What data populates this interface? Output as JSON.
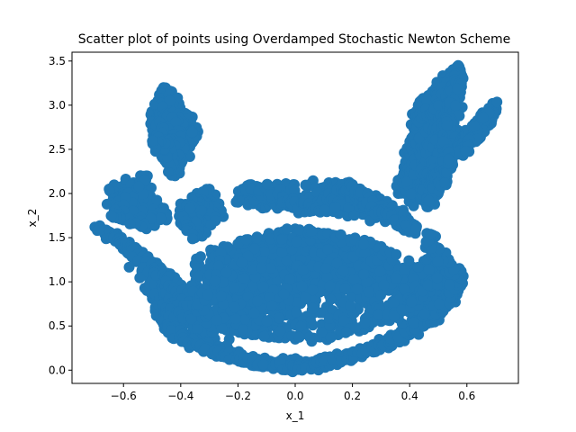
{
  "chart_data": {
    "type": "scatter",
    "title": "Scatter plot of points using Overdamped Stochastic Newton Scheme",
    "xlabel": "x_1",
    "ylabel": "x_2",
    "xlim": [
      -0.78,
      0.78
    ],
    "ylim": [
      -0.15,
      3.6
    ],
    "xticks": [
      -0.6,
      -0.4,
      -0.2,
      0.0,
      0.2,
      0.4,
      0.6
    ],
    "xtick_labels": [
      "−0.6",
      "−0.4",
      "−0.2",
      "0.0",
      "0.2",
      "0.4",
      "0.6"
    ],
    "yticks": [
      0.0,
      0.5,
      1.0,
      1.5,
      2.0,
      2.5,
      3.0,
      3.5
    ],
    "ytick_labels": [
      "0.0",
      "0.5",
      "1.0",
      "1.5",
      "2.0",
      "2.5",
      "3.0",
      "3.5"
    ],
    "grid": false,
    "marker_color": "#1f77b4",
    "series": [
      {
        "values_description_points": [
          [
            -0.7,
            1.62
          ],
          [
            -0.66,
            1.55
          ],
          [
            -0.62,
            1.5
          ],
          [
            -0.58,
            1.4
          ],
          [
            -0.55,
            1.3
          ],
          [
            -0.5,
            1.2
          ],
          [
            -0.46,
            1.1
          ],
          [
            -0.42,
            1.0
          ],
          [
            -0.4,
            0.85
          ],
          [
            -0.42,
            0.7
          ],
          [
            -0.46,
            0.52
          ],
          [
            -0.44,
            0.45
          ],
          [
            -0.4,
            0.35
          ],
          [
            -0.35,
            0.28
          ],
          [
            -0.3,
            0.22
          ],
          [
            -0.25,
            0.18
          ],
          [
            -0.2,
            0.14
          ],
          [
            -0.15,
            0.1
          ],
          [
            -0.1,
            0.06
          ],
          [
            -0.05,
            0.03
          ],
          [
            0.0,
            0.02
          ],
          [
            0.05,
            0.03
          ],
          [
            0.1,
            0.06
          ],
          [
            0.15,
            0.1
          ],
          [
            0.2,
            0.16
          ],
          [
            0.25,
            0.22
          ],
          [
            0.3,
            0.28
          ],
          [
            0.35,
            0.32
          ],
          [
            0.4,
            0.4
          ],
          [
            0.45,
            0.5
          ],
          [
            0.5,
            0.62
          ],
          [
            0.54,
            0.75
          ],
          [
            0.57,
            0.9
          ],
          [
            0.58,
            1.05
          ],
          [
            0.56,
            1.1
          ],
          [
            0.52,
            1.2
          ],
          [
            0.48,
            1.35
          ],
          [
            0.46,
            1.55
          ],
          [
            -0.65,
            2.05
          ],
          [
            -0.62,
            1.95
          ],
          [
            -0.58,
            1.9
          ],
          [
            -0.55,
            2.1
          ],
          [
            -0.52,
            2.2
          ],
          [
            -0.5,
            1.8
          ],
          [
            -0.45,
            1.7
          ],
          [
            -0.52,
            1.6
          ],
          [
            -0.6,
            1.7
          ],
          [
            -0.64,
            1.75
          ],
          [
            -0.5,
            2.8
          ],
          [
            -0.48,
            3.05
          ],
          [
            -0.46,
            3.2
          ],
          [
            -0.44,
            3.12
          ],
          [
            -0.45,
            2.9
          ],
          [
            -0.42,
            2.8
          ],
          [
            -0.4,
            2.9
          ],
          [
            -0.38,
            2.7
          ],
          [
            -0.36,
            2.65
          ],
          [
            -0.34,
            2.7
          ],
          [
            -0.38,
            2.55
          ],
          [
            -0.41,
            2.4
          ],
          [
            -0.42,
            2.2
          ],
          [
            -0.44,
            2.55
          ],
          [
            -0.47,
            2.45
          ],
          [
            -0.49,
            2.6
          ],
          [
            -0.3,
            2.05
          ],
          [
            -0.28,
            1.9
          ],
          [
            -0.26,
            1.75
          ],
          [
            -0.33,
            1.85
          ],
          [
            -0.36,
            1.95
          ],
          [
            -0.4,
            1.8
          ],
          [
            -0.38,
            1.6
          ],
          [
            -0.35,
            1.5
          ],
          [
            -0.2,
            1.9
          ],
          [
            -0.18,
            2.05
          ],
          [
            -0.16,
            2.1
          ],
          [
            -0.1,
            2.0
          ],
          [
            -0.05,
            1.9
          ],
          [
            0.0,
            1.85
          ],
          [
            0.05,
            1.8
          ],
          [
            0.1,
            1.9
          ],
          [
            0.15,
            2.05
          ],
          [
            0.18,
            2.12
          ],
          [
            0.22,
            2.05
          ],
          [
            0.24,
            1.9
          ],
          [
            0.28,
            1.8
          ],
          [
            0.32,
            1.75
          ],
          [
            0.36,
            1.8
          ],
          [
            0.4,
            1.65
          ],
          [
            0.42,
            1.55
          ],
          [
            0.36,
            2.0
          ],
          [
            0.38,
            2.2
          ],
          [
            0.4,
            2.4
          ],
          [
            0.42,
            2.55
          ],
          [
            0.44,
            2.7
          ],
          [
            0.45,
            2.85
          ],
          [
            0.43,
            3.0
          ],
          [
            0.46,
            3.05
          ],
          [
            0.49,
            3.1
          ],
          [
            0.52,
            3.2
          ],
          [
            0.55,
            3.35
          ],
          [
            0.57,
            3.45
          ],
          [
            0.58,
            3.3
          ],
          [
            0.56,
            3.1
          ],
          [
            0.54,
            2.9
          ],
          [
            0.52,
            2.6
          ],
          [
            0.5,
            2.3
          ],
          [
            0.48,
            2.05
          ],
          [
            0.46,
            1.85
          ],
          [
            0.5,
            2.0
          ],
          [
            0.53,
            2.25
          ],
          [
            0.55,
            2.4
          ],
          [
            0.57,
            2.55
          ],
          [
            0.6,
            2.6
          ],
          [
            0.63,
            2.65
          ],
          [
            0.66,
            2.75
          ],
          [
            0.68,
            2.85
          ],
          [
            0.7,
            2.98
          ],
          [
            0.69,
            3.02
          ],
          [
            0.62,
            2.58
          ],
          [
            0.58,
            2.45
          ],
          [
            -0.3,
            0.5
          ],
          [
            -0.2,
            0.6
          ],
          [
            -0.1,
            0.7
          ],
          [
            0.0,
            0.8
          ],
          [
            0.1,
            0.9
          ],
          [
            0.2,
            1.0
          ],
          [
            0.3,
            1.1
          ],
          [
            0.35,
            1.2
          ],
          [
            -0.25,
            1.0
          ],
          [
            -0.15,
            1.1
          ],
          [
            -0.05,
            1.2
          ],
          [
            0.05,
            1.3
          ],
          [
            0.15,
            1.4
          ],
          [
            0.25,
            1.3
          ],
          [
            -0.35,
            1.2
          ],
          [
            -0.25,
            1.4
          ],
          [
            -0.1,
            1.5
          ],
          [
            0.0,
            1.6
          ],
          [
            0.1,
            1.55
          ],
          [
            0.2,
            1.45
          ],
          [
            0.3,
            1.4
          ],
          [
            -0.15,
            0.4
          ],
          [
            0.0,
            0.35
          ],
          [
            0.15,
            0.4
          ],
          [
            0.3,
            0.55
          ],
          [
            0.4,
            0.7
          ],
          [
            0.45,
            0.9
          ],
          [
            0.5,
            1.05
          ],
          [
            -0.35,
            0.7
          ],
          [
            -0.3,
            0.9
          ]
        ]
      }
    ]
  }
}
